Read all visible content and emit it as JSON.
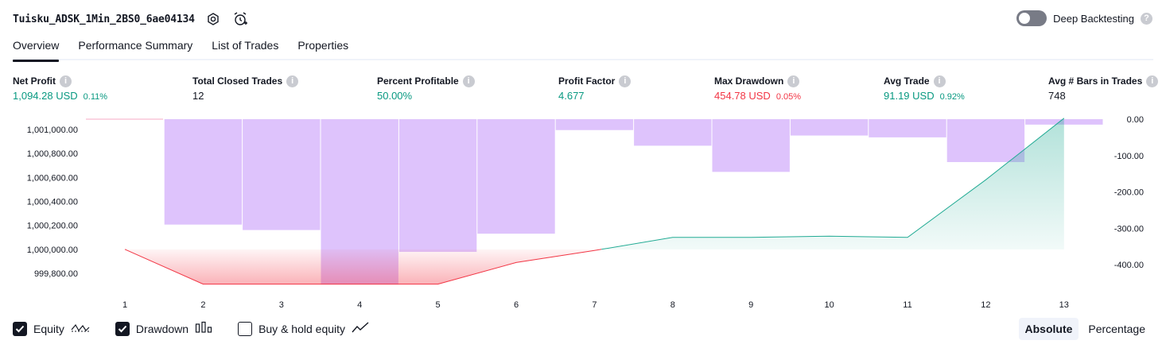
{
  "header": {
    "strategy_name": "Tuisku_ADSK_1Min_2BS0_6ae04134",
    "settings_icon": "gear-icon",
    "alert_icon": "alarm-clock-plus-icon",
    "deep_backtesting_label": "Deep Backtesting",
    "deep_backtesting_enabled": false,
    "help_glyph": "?"
  },
  "tabs": [
    {
      "label": "Overview",
      "active": true
    },
    {
      "label": "Performance Summary",
      "active": false
    },
    {
      "label": "List of Trades",
      "active": false
    },
    {
      "label": "Properties",
      "active": false
    }
  ],
  "metrics": {
    "net_profit": {
      "label": "Net Profit",
      "value": "1,094.28 USD",
      "pct": "0.11%"
    },
    "total_closed_trades": {
      "label": "Total Closed Trades",
      "value": "12"
    },
    "percent_profitable": {
      "label": "Percent Profitable",
      "value": "50.00%"
    },
    "profit_factor": {
      "label": "Profit Factor",
      "value": "4.677"
    },
    "max_drawdown": {
      "label": "Max Drawdown",
      "value": "454.78 USD",
      "pct": "0.05%"
    },
    "avg_trade": {
      "label": "Avg Trade",
      "value": "91.19 USD",
      "pct": "0.92%"
    },
    "avg_bars": {
      "label": "Avg # Bars in Trades",
      "value": "748"
    }
  },
  "chart_data": {
    "type": "area",
    "x": [
      1,
      2,
      3,
      4,
      5,
      6,
      7,
      8,
      9,
      10,
      11,
      12,
      13
    ],
    "left_axis_ticks": [
      "1,001,000.00",
      "1,000,800.00",
      "1,000,600.00",
      "1,000,400.00",
      "1,000,200.00",
      "1,000,000.00",
      "999,800.00"
    ],
    "right_axis_ticks": [
      "0.00",
      "-100.00",
      "-200.00",
      "-300.00",
      "-400.00"
    ],
    "equity": [
      1000000,
      999710,
      999710,
      999710,
      999710,
      999890,
      999990,
      1000100,
      1000100,
      1000110,
      1000100,
      1000580,
      1001094.28
    ],
    "drawdown": [
      -2,
      -290,
      -305,
      -455,
      -365,
      -315,
      -30,
      -73,
      -145,
      -45,
      -50,
      -118,
      -15
    ],
    "colors": {
      "equity_up_line": "#22ab94",
      "equity_down_line": "#f23645",
      "drawdown_bar": "#d8b8fc"
    }
  },
  "legend": {
    "equity": {
      "label": "Equity",
      "checked": true,
      "icon": "equity-wave-icon"
    },
    "drawdown": {
      "label": "Drawdown",
      "checked": true,
      "icon": "bars-icon"
    },
    "buy_hold": {
      "label": "Buy & hold equity",
      "checked": false,
      "icon": "line-trend-icon"
    }
  },
  "mode": {
    "absolute": "Absolute",
    "percentage": "Percentage",
    "selected": "Absolute"
  }
}
